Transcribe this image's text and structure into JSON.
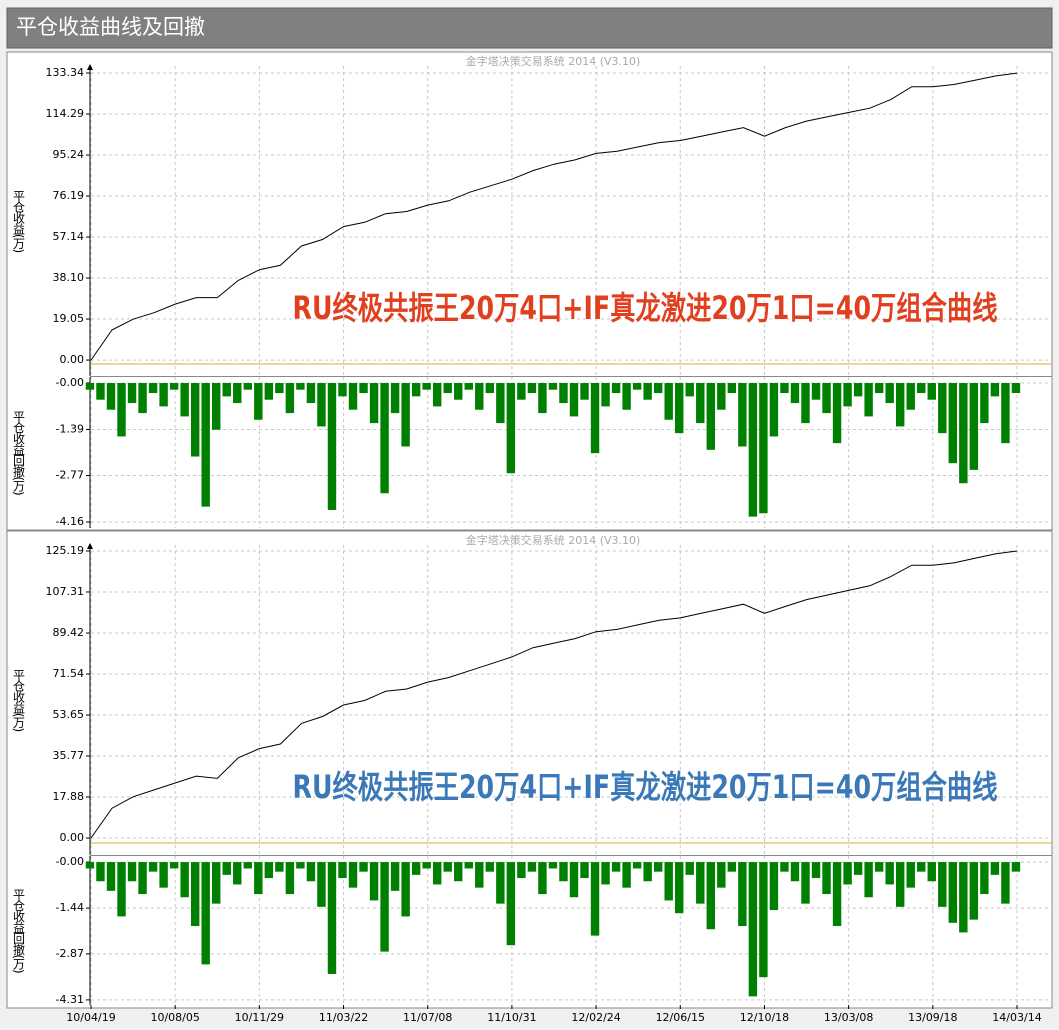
{
  "header": {
    "title": "平仓收益曲线及回撤"
  },
  "chart_data": [
    {
      "type": "line",
      "color": "#000000",
      "watermark": "金字塔决策交易系统 2014 (V3.10)",
      "y_label": "平仓收益(万)",
      "annotation": "RU终极共振王20万4口+IF真龙激进20万1口=40万组合曲线",
      "annotation_color": "#e0401e",
      "xlim": [
        0,
        44
      ],
      "ylim": [
        -7.4,
        136.6
      ],
      "yticks": [
        {
          "value": 0,
          "label": "0.00"
        },
        19.05,
        {
          "value": 38.1,
          "label": "38.10"
        },
        57.14,
        76.19,
        95.24,
        114.29,
        133.34
      ],
      "values": [
        0,
        14,
        19,
        22,
        26,
        29,
        29,
        37,
        42,
        44,
        53,
        56,
        62,
        64,
        68,
        69,
        72,
        74,
        78,
        81,
        84,
        88,
        91,
        93,
        96,
        97,
        99,
        101,
        102,
        104,
        106,
        108,
        104,
        108,
        111,
        113,
        115,
        117,
        121,
        127,
        127,
        128,
        130,
        132,
        133.3
      ]
    },
    {
      "type": "bar",
      "color": "#008000",
      "y_label": "平仓收益回撤(万)",
      "xlim": [
        0,
        88
      ],
      "ylim": [
        -4.34,
        0.18
      ],
      "yticks": [
        {
          "value": 0,
          "label": "-0.00"
        },
        -1.39,
        -2.77,
        -4.16
      ],
      "values": [
        -0.2,
        -0.5,
        -0.8,
        -1.6,
        -0.6,
        -0.9,
        -0.3,
        -0.7,
        -0.2,
        -1.0,
        -2.2,
        -3.7,
        -1.4,
        -0.4,
        -0.6,
        -0.2,
        -1.1,
        -0.5,
        -0.3,
        -0.9,
        -0.2,
        -0.6,
        -1.3,
        -3.8,
        -0.4,
        -0.8,
        -0.3,
        -1.2,
        -3.3,
        -0.9,
        -1.9,
        -0.4,
        -0.2,
        -0.7,
        -0.3,
        -0.5,
        -0.2,
        -0.8,
        -0.3,
        -1.2,
        -2.7,
        -0.5,
        -0.3,
        -0.9,
        -0.2,
        -0.6,
        -1.0,
        -0.5,
        -2.1,
        -0.7,
        -0.3,
        -0.8,
        -0.2,
        -0.5,
        -0.3,
        -1.1,
        -1.5,
        -0.4,
        -1.2,
        -2.0,
        -0.8,
        -0.3,
        -1.9,
        -4.0,
        -3.9,
        -1.6,
        -0.3,
        -0.6,
        -1.2,
        -0.5,
        -0.9,
        -1.8,
        -0.7,
        -0.4,
        -1.0,
        -0.3,
        -0.6,
        -1.3,
        -0.8,
        -0.3,
        -0.5,
        -1.5,
        -2.4,
        -3.0,
        -2.6,
        -1.2,
        -0.4,
        -1.8,
        -0.3
      ]
    },
    {
      "type": "line",
      "color": "#000000",
      "watermark": "金字塔决策交易系统 2014 (V3.10)",
      "y_label": "平仓收益(万)",
      "annotation": "RU终极共振王20万4口+IF真龙激进20万1口=40万组合曲线",
      "annotation_color": "#3a78b8",
      "xlim": [
        0,
        44
      ],
      "ylim": [
        -7.4,
        127.8
      ],
      "yticks": [
        {
          "value": 0,
          "label": "0.00"
        },
        17.88,
        35.77,
        53.65,
        71.54,
        89.42,
        107.31,
        125.19
      ],
      "values": [
        0,
        13,
        18,
        21,
        24,
        27,
        26,
        35,
        39,
        41,
        50,
        53,
        58,
        60,
        64,
        65,
        68,
        70,
        73,
        76,
        79,
        83,
        85,
        87,
        90,
        91,
        93,
        95,
        96,
        98,
        100,
        102,
        98,
        101,
        104,
        106,
        108,
        110,
        114,
        119,
        119,
        120,
        122,
        124,
        125.2
      ]
    },
    {
      "type": "bar",
      "color": "#008000",
      "y_label": "平仓收益回撤(万)",
      "xlim": [
        0,
        88
      ],
      "ylim": [
        -4.47,
        0.19
      ],
      "yticks": [
        {
          "value": 0,
          "label": "-0.00"
        },
        -1.44,
        -2.87,
        -4.31
      ],
      "xticks": [
        {
          "value": 0,
          "label": "10/04/19"
        },
        {
          "value": 8,
          "label": "10/08/05"
        },
        {
          "value": 16,
          "label": "10/11/29"
        },
        {
          "value": 24,
          "label": "11/03/22"
        },
        {
          "value": 32,
          "label": "11/07/08"
        },
        {
          "value": 40,
          "label": "11/10/31"
        },
        {
          "value": 48,
          "label": "12/02/24"
        },
        {
          "value": 56,
          "label": "12/06/15"
        },
        {
          "value": 64,
          "label": "12/10/18"
        },
        {
          "value": 72,
          "label": "13/03/08"
        },
        {
          "value": 80,
          "label": "13/09/18"
        },
        {
          "value": 88,
          "label": "14/03/14"
        }
      ],
      "values": [
        -0.2,
        -0.6,
        -0.9,
        -1.7,
        -0.6,
        -1.0,
        -0.3,
        -0.8,
        -0.2,
        -1.1,
        -2.0,
        -3.2,
        -1.3,
        -0.4,
        -0.7,
        -0.2,
        -1.0,
        -0.5,
        -0.3,
        -1.0,
        -0.2,
        -0.6,
        -1.4,
        -3.5,
        -0.5,
        -0.8,
        -0.3,
        -1.2,
        -2.8,
        -0.9,
        -1.7,
        -0.4,
        -0.2,
        -0.7,
        -0.3,
        -0.6,
        -0.2,
        -0.8,
        -0.3,
        -1.3,
        -2.6,
        -0.5,
        -0.3,
        -1.0,
        -0.2,
        -0.6,
        -1.1,
        -0.5,
        -2.3,
        -0.7,
        -0.3,
        -0.8,
        -0.2,
        -0.6,
        -0.3,
        -1.2,
        -1.6,
        -0.4,
        -1.3,
        -2.1,
        -0.8,
        -0.3,
        -2.0,
        -4.2,
        -3.6,
        -1.5,
        -0.3,
        -0.6,
        -1.3,
        -0.5,
        -1.0,
        -2.0,
        -0.7,
        -0.4,
        -1.1,
        -0.3,
        -0.7,
        -1.4,
        -0.8,
        -0.3,
        -0.6,
        -1.4,
        -1.9,
        -2.2,
        -1.8,
        -1.0,
        -0.4,
        -1.3,
        -0.3
      ]
    }
  ]
}
